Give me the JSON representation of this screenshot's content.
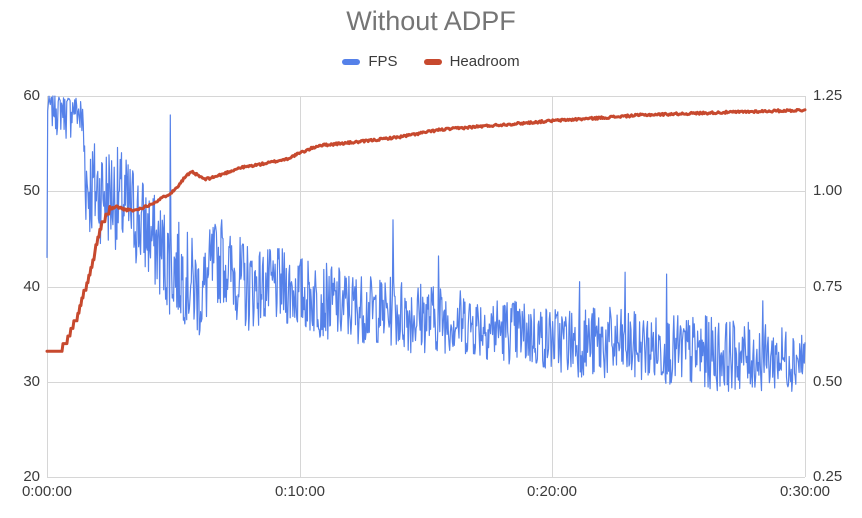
{
  "title": "Without ADPF",
  "legend": {
    "items": [
      {
        "label": "FPS",
        "color": "#5581e9"
      },
      {
        "label": "Headroom",
        "color": "#c7492e"
      }
    ]
  },
  "axes": {
    "left": {
      "ticks": [
        "60",
        "50",
        "40",
        "30",
        "20"
      ]
    },
    "right": {
      "ticks": [
        "1.25",
        "1.00",
        "0.75",
        "0.50",
        "0.25"
      ]
    },
    "x": {
      "ticks": [
        "0:00:00",
        "0:10:00",
        "0:20:00",
        "0:30:00"
      ]
    }
  },
  "colors": {
    "title_text": "#757575",
    "axis_text": "#3b3b3b",
    "gridline": "#d6d6d6",
    "background": "#ffffff"
  },
  "chart_data": {
    "type": "line",
    "title": "Without ADPF",
    "grid": true,
    "legend_position": "top",
    "x_axis": {
      "tick_labels": [
        "0:00:00",
        "0:10:00",
        "0:20:00",
        "0:30:00"
      ],
      "tick_seconds": [
        0,
        600,
        1200,
        1800
      ],
      "range_seconds": [
        0,
        1800
      ]
    },
    "y_left_axis": {
      "series": "FPS",
      "range": [
        20,
        60
      ],
      "ticks": [
        60,
        50,
        40,
        30,
        20
      ]
    },
    "y_right_axis": {
      "series": "Headroom",
      "range": [
        0.25,
        1.25
      ],
      "ticks": [
        1.25,
        1.0,
        0.75,
        0.5,
        0.25
      ]
    },
    "series": [
      {
        "name": "FPS",
        "axis": "left",
        "color": "#5581e9",
        "stroke_width": 1.2,
        "style": "noisy",
        "start_value": 43,
        "cap_value": 60,
        "noise_seed": 7,
        "samples": 1150,
        "envelope_t_lo_hi_bias": [
          [
            0,
            52,
            60,
            0.18
          ],
          [
            70,
            50,
            60,
            0.18
          ],
          [
            85,
            47,
            60,
            0.35
          ],
          [
            95,
            45,
            56,
            1
          ],
          [
            160,
            44,
            55,
            1
          ],
          [
            210,
            42,
            53,
            1
          ],
          [
            250,
            40,
            50,
            1
          ],
          [
            290,
            37,
            48,
            1
          ],
          [
            330,
            36,
            46,
            1
          ],
          [
            368,
            34,
            44,
            1
          ],
          [
            395,
            38,
            47,
            1
          ],
          [
            430,
            38,
            46,
            1
          ],
          [
            470,
            35,
            45,
            1
          ],
          [
            510,
            36,
            44,
            1
          ],
          [
            560,
            36,
            44,
            1
          ],
          [
            620,
            35,
            43,
            1
          ],
          [
            700,
            34,
            42,
            1
          ],
          [
            780,
            34,
            41,
            1
          ],
          [
            860,
            33,
            41,
            1
          ],
          [
            960,
            33,
            40,
            1
          ],
          [
            1080,
            32,
            39,
            1
          ],
          [
            1200,
            31,
            38,
            1
          ],
          [
            1320,
            30,
            38,
            1
          ],
          [
            1440,
            30,
            37,
            1
          ],
          [
            1560,
            29,
            37,
            1
          ],
          [
            1700,
            29,
            36,
            1
          ],
          [
            1800,
            29,
            36,
            1
          ]
        ],
        "spikes_t_value": [
          [
            292,
            58
          ],
          [
            415,
            47
          ],
          [
            821,
            47
          ],
          [
            930,
            43.2
          ],
          [
            1265,
            40.5
          ],
          [
            1372,
            41.5
          ],
          [
            1472,
            41.3
          ],
          [
            1700,
            38.5
          ]
        ]
      },
      {
        "name": "Headroom",
        "axis": "right",
        "color": "#c7492e",
        "stroke_width": 3,
        "style": "smooth",
        "noise_seed": 11,
        "jitter": 0.006,
        "staircase": {
          "until_t": 150,
          "step": 0.02
        },
        "points_t_value": [
          [
            0,
            0.575
          ],
          [
            25,
            0.578
          ],
          [
            45,
            0.6
          ],
          [
            60,
            0.64
          ],
          [
            75,
            0.68
          ],
          [
            90,
            0.74
          ],
          [
            105,
            0.8
          ],
          [
            118,
            0.86
          ],
          [
            130,
            0.91
          ],
          [
            140,
            0.935
          ],
          [
            150,
            0.952
          ],
          [
            165,
            0.96
          ],
          [
            185,
            0.952
          ],
          [
            205,
            0.949
          ],
          [
            225,
            0.956
          ],
          [
            245,
            0.965
          ],
          [
            270,
            0.98
          ],
          [
            300,
            1.0
          ],
          [
            330,
            1.04
          ],
          [
            345,
            1.05
          ],
          [
            375,
            1.031
          ],
          [
            405,
            1.04
          ],
          [
            456,
            1.061
          ],
          [
            528,
            1.075
          ],
          [
            570,
            1.085
          ],
          [
            600,
            1.1
          ],
          [
            645,
            1.12
          ],
          [
            744,
            1.13
          ],
          [
            840,
            1.143
          ],
          [
            930,
            1.161
          ],
          [
            1026,
            1.17
          ],
          [
            1122,
            1.178
          ],
          [
            1200,
            1.185
          ],
          [
            1320,
            1.193
          ],
          [
            1410,
            1.2
          ],
          [
            1550,
            1.205
          ],
          [
            1670,
            1.209
          ],
          [
            1800,
            1.213
          ]
        ]
      }
    ]
  }
}
